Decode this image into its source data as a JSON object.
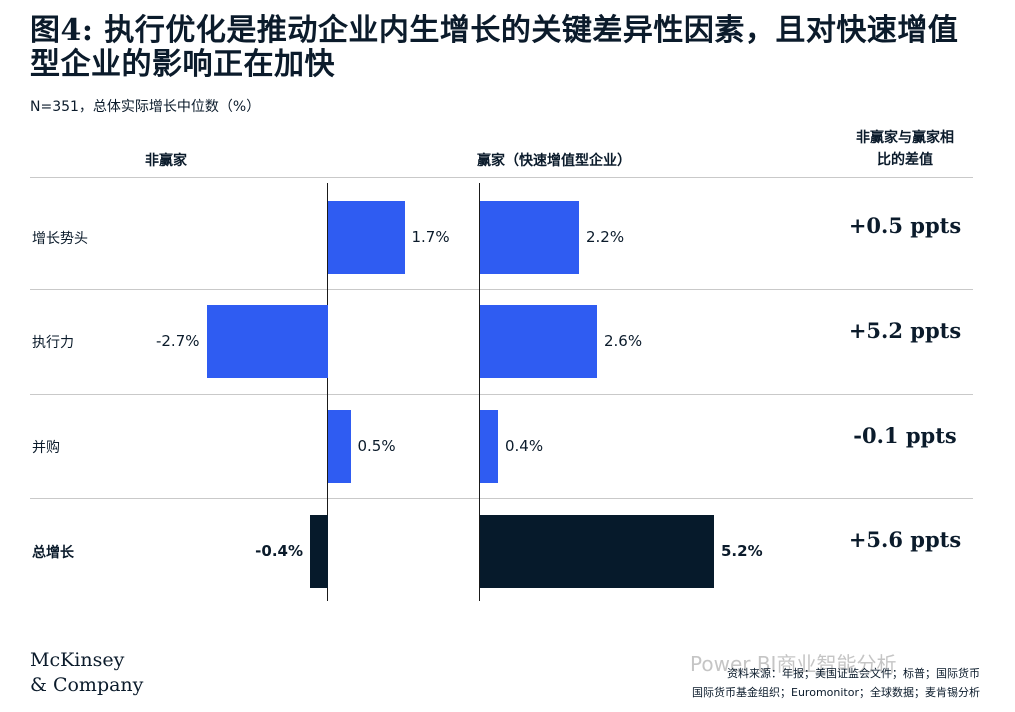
{
  "title": "图4: 执行优化是推动企业内生增长的关键差异性因素，且对快速增值型企业的影响正在加快",
  "subtitle": "N=351，总体实际增长中位数（%）",
  "chart_data": {
    "type": "bar",
    "orientation": "horizontal",
    "column_headers": {
      "left": "非赢家",
      "right": "赢家（快速增值型企业）",
      "diff_line1": "非赢家与赢家相",
      "diff_line2": "比的差值"
    },
    "categories": [
      "增长势头",
      "执行力",
      "并购",
      "总增长"
    ],
    "series": [
      {
        "name": "非赢家",
        "values": [
          1.7,
          -2.7,
          0.5,
          -0.4
        ],
        "labels": [
          "1.7%",
          "-2.7%",
          "0.5%",
          "-0.4%"
        ]
      },
      {
        "name": "赢家（快速增值型企业）",
        "values": [
          2.2,
          2.6,
          0.4,
          5.2
        ],
        "labels": [
          "2.2%",
          "2.6%",
          "0.4%",
          "5.2%"
        ]
      }
    ],
    "differences": [
      "+0.5 ppts",
      "+5.2 ppts",
      "-0.1 ppts",
      "+5.6 ppts"
    ],
    "colors": {
      "bar": "#2f5cf2",
      "total_bar": "#061a2b"
    }
  },
  "footer": {
    "logo_line1": "McKinsey",
    "logo_line2": "& Company",
    "source_line1": "资料来源：年报；美国证监会文件；标普；国际货币",
    "source_line2": "国际货币基金组织；Euromonitor；全球数据；麦肯锡分析",
    "watermark": "Power BI商业智能分析"
  }
}
